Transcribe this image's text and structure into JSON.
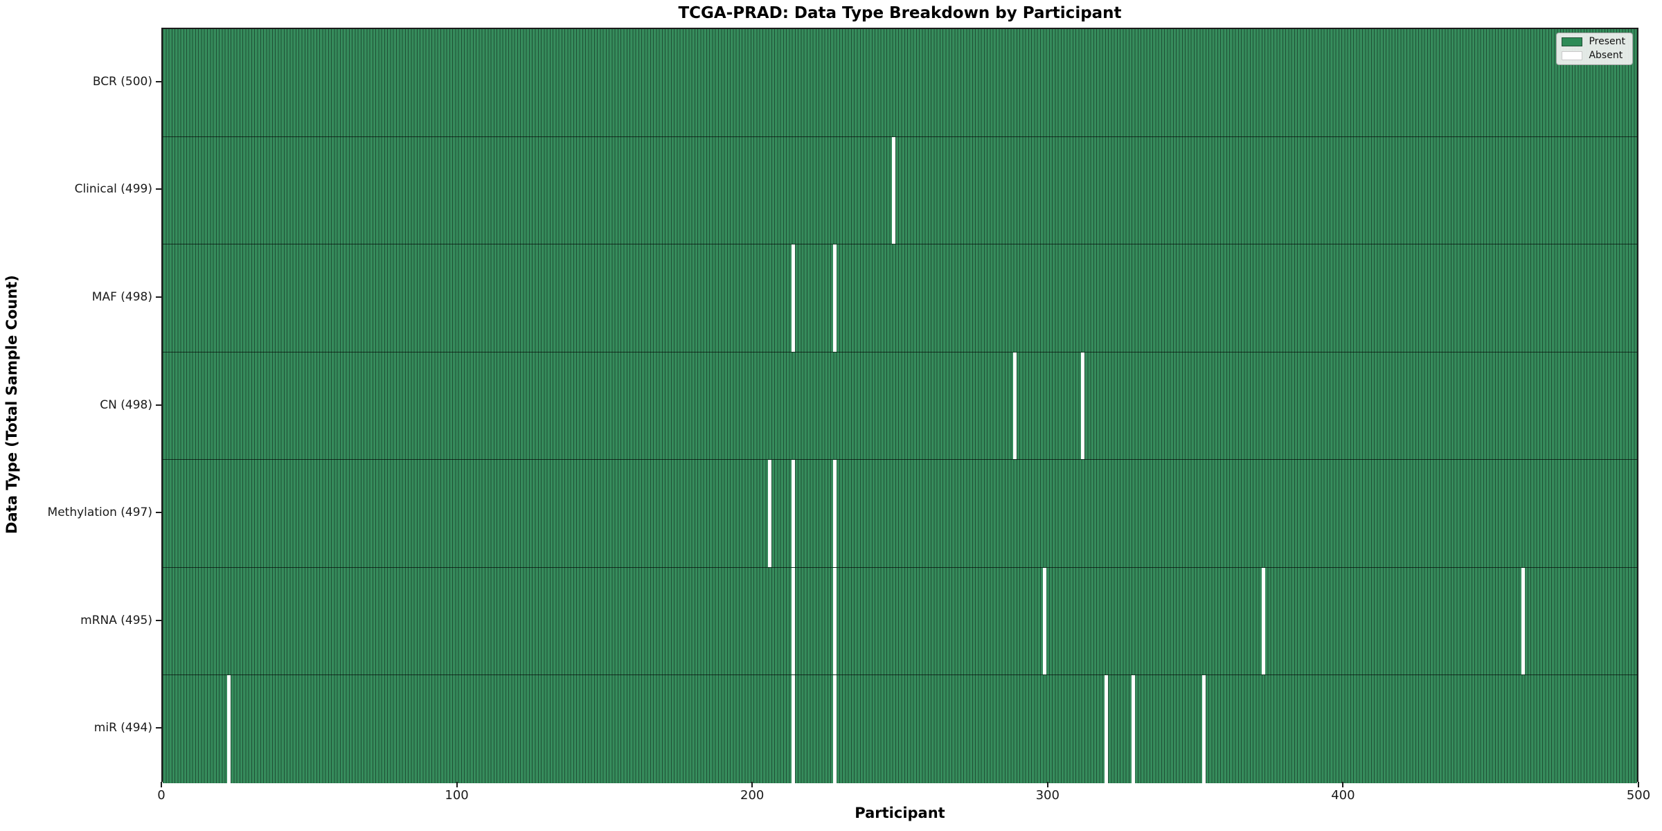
{
  "title": "TCGA-PRAD: Data Type Breakdown by Participant",
  "chart_data": {
    "type": "heatmap",
    "title": "TCGA-PRAD: Data Type Breakdown by Participant",
    "xlabel": "Participant",
    "ylabel": "Data Type (Total Sample Count)",
    "xlim": [
      0,
      500
    ],
    "n_participants": 500,
    "x_ticks": [
      0,
      100,
      200,
      300,
      400,
      500
    ],
    "grid": false,
    "legend_position": "upper right",
    "legend": [
      {
        "label": "Present",
        "color": "#2e8b57"
      },
      {
        "label": "Absent",
        "color": "#ffffff"
      }
    ],
    "rows": [
      {
        "label": "BCR (500)",
        "name": "BCR",
        "total": 500,
        "absent_participants": []
      },
      {
        "label": "Clinical (499)",
        "name": "Clinical",
        "total": 499,
        "absent_participants": [
          247
        ]
      },
      {
        "label": "MAF (498)",
        "name": "MAF",
        "total": 498,
        "absent_participants": [
          213,
          227
        ]
      },
      {
        "label": "CN (498)",
        "name": "CN",
        "total": 498,
        "absent_participants": [
          288,
          311
        ]
      },
      {
        "label": "Methylation (497)",
        "name": "Methylation",
        "total": 497,
        "absent_participants": [
          205,
          213,
          227
        ]
      },
      {
        "label": "mRNA (495)",
        "name": "mRNA",
        "total": 495,
        "absent_participants": [
          213,
          227,
          298,
          372,
          460
        ]
      },
      {
        "label": "miR (494)",
        "name": "miR",
        "total": 494,
        "absent_participants": [
          22,
          213,
          227,
          319,
          328,
          352
        ]
      }
    ],
    "colors": {
      "present_fill": "#368c5c",
      "cell_edge": "#1f4f35",
      "absent": "#ffffff",
      "axis": "#1c1c1c"
    }
  }
}
